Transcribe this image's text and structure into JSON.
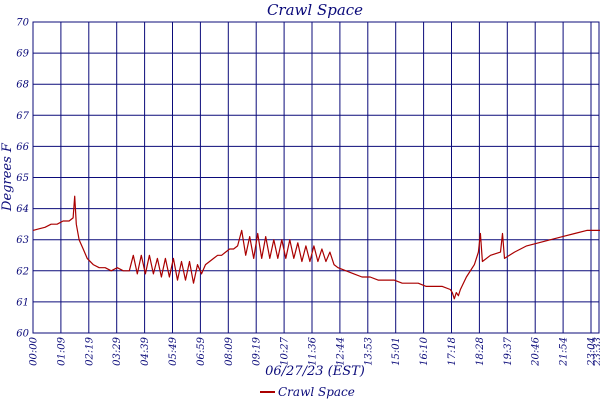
{
  "chart_data": {
    "type": "line",
    "title": "Crawl Space",
    "xlabel": "06/27/23 (EST)",
    "ylabel": "Degrees F",
    "ylim": [
      60,
      70
    ],
    "yticks": [
      60,
      61,
      62,
      63,
      64,
      65,
      66,
      67,
      68,
      69,
      70
    ],
    "xticks": [
      "00:00",
      "01:09",
      "02:19",
      "03:29",
      "04:39",
      "05:49",
      "06:59",
      "08:09",
      "09:19",
      "10:27",
      "11:36",
      "12:44",
      "13:53",
      "15:01",
      "16:10",
      "17:18",
      "18:28",
      "19:37",
      "20:46",
      "21:54",
      "23:04",
      "23:33"
    ],
    "grid": true,
    "legend_position": "bottom-center",
    "colors": {
      "series": "#aa0000",
      "grid": "#0b0b7a",
      "text": "#0b0b7a"
    },
    "series": [
      {
        "name": "Crawl Space",
        "x": [
          0,
          15,
          30,
          45,
          60,
          75,
          90,
          100,
          104,
          108,
          115,
          125,
          135,
          150,
          165,
          180,
          195,
          210,
          225,
          240,
          250,
          260,
          270,
          280,
          290,
          300,
          310,
          320,
          330,
          340,
          350,
          360,
          370,
          380,
          390,
          400,
          410,
          420,
          430,
          440,
          450,
          460,
          470,
          480,
          490,
          500,
          510,
          520,
          530,
          540,
          550,
          560,
          570,
          580,
          590,
          600,
          610,
          620,
          630,
          640,
          650,
          660,
          670,
          680,
          690,
          700,
          710,
          720,
          730,
          740,
          750,
          760,
          780,
          800,
          820,
          840,
          860,
          880,
          900,
          920,
          940,
          960,
          980,
          1000,
          1020,
          1040,
          1045,
          1050,
          1055,
          1060,
          1065,
          1080,
          1100,
          1110,
          1115,
          1120,
          1140,
          1165,
          1170,
          1175,
          1200,
          1230,
          1260,
          1290,
          1320,
          1350,
          1380,
          1413
        ],
        "y": [
          63.3,
          63.35,
          63.4,
          63.5,
          63.5,
          63.6,
          63.6,
          63.7,
          64.4,
          63.5,
          63.0,
          62.7,
          62.4,
          62.2,
          62.1,
          62.1,
          62.0,
          62.1,
          62.0,
          62.0,
          62.5,
          61.9,
          62.5,
          61.9,
          62.5,
          61.9,
          62.4,
          61.8,
          62.4,
          61.8,
          62.4,
          61.7,
          62.3,
          61.7,
          62.3,
          61.6,
          62.2,
          61.9,
          62.2,
          62.3,
          62.4,
          62.5,
          62.5,
          62.6,
          62.7,
          62.7,
          62.8,
          63.3,
          62.5,
          63.1,
          62.4,
          63.2,
          62.4,
          63.1,
          62.4,
          63.0,
          62.4,
          63.0,
          62.4,
          63.0,
          62.4,
          62.9,
          62.3,
          62.8,
          62.3,
          62.8,
          62.3,
          62.7,
          62.3,
          62.6,
          62.2,
          62.1,
          62.0,
          61.9,
          61.8,
          61.8,
          61.7,
          61.7,
          61.7,
          61.6,
          61.6,
          61.6,
          61.5,
          61.5,
          61.5,
          61.4,
          61.3,
          61.1,
          61.3,
          61.2,
          61.4,
          61.8,
          62.2,
          62.6,
          63.2,
          62.3,
          62.5,
          62.6,
          63.2,
          62.4,
          62.6,
          62.8,
          62.9,
          63.0,
          63.1,
          63.2,
          63.3,
          63.3
        ]
      }
    ]
  }
}
